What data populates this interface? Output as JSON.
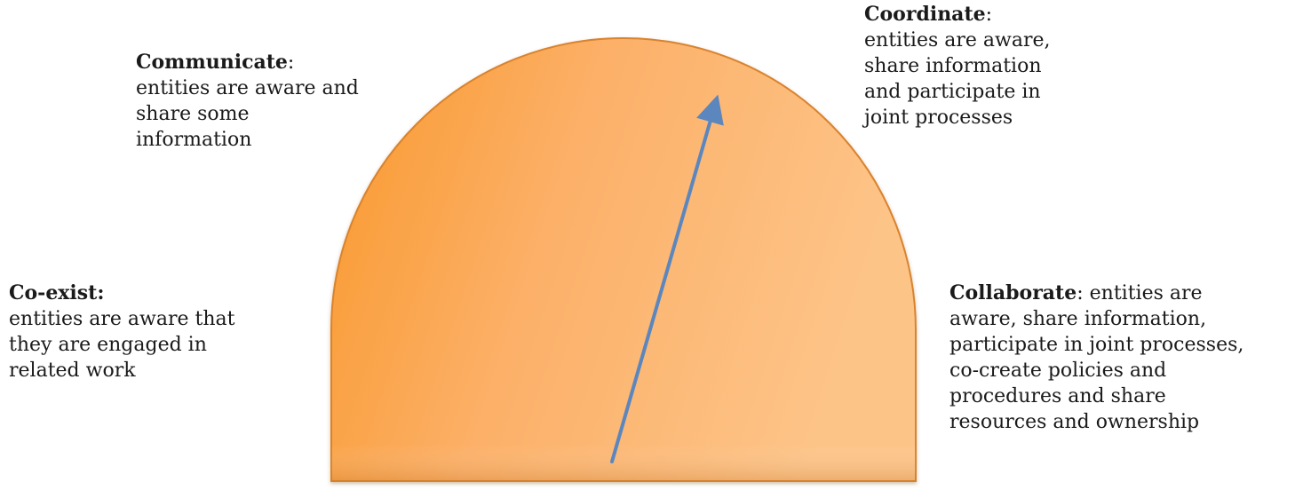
{
  "stages": [
    {
      "id": "communicate",
      "title": "Communicate",
      "suffix": ":",
      "description": "entities are aware and share some information"
    },
    {
      "id": "coordinate",
      "title": "Coordinate",
      "suffix": ":",
      "description": "entities are aware, share information and participate in joint processes"
    },
    {
      "id": "coexist",
      "title": "Co-exist:",
      "suffix": "",
      "description": "entities are aware that they are engaged in related work"
    },
    {
      "id": "collaborate",
      "title": "Collaborate",
      "suffix": ":",
      "description": "entities are aware, share information, participate in joint processes, co-create policies and procedures and share resources and ownership"
    }
  ],
  "colors": {
    "dial_left": "#f9982c",
    "dial_right": "#fdc488",
    "dial_edge": "#d9832f",
    "needle": "#5b86be"
  }
}
